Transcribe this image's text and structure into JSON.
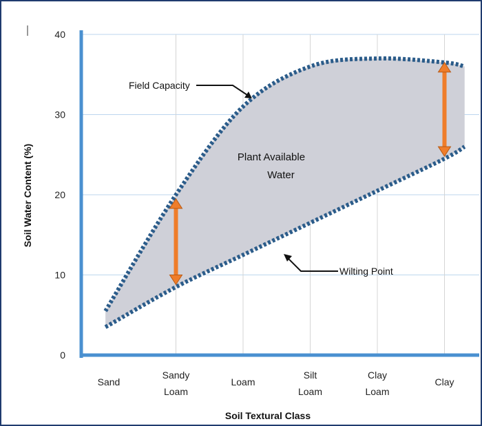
{
  "chart_data": {
    "type": "area",
    "ylabel": "Soil Water Content (%)",
    "xlabel": "Soil Textural Class",
    "ylim": [
      0,
      40
    ],
    "yticks": [
      "0",
      "10",
      "20",
      "30",
      "40"
    ],
    "grid": true,
    "categories": [
      [
        "Sand"
      ],
      [
        "Sandy",
        "Loam"
      ],
      [
        "Loam"
      ],
      [
        "Silt",
        "Loam"
      ],
      [
        "Clay",
        "Loam"
      ],
      [
        "Clay"
      ]
    ],
    "x": [
      0,
      1,
      2,
      3,
      4,
      5
    ],
    "series": [
      {
        "name": "Field Capacity",
        "x": [
          -0.05,
          1,
          2,
          3,
          4,
          5,
          5.3
        ],
        "values": [
          5.5,
          20,
          31,
          36,
          37,
          36.5,
          36
        ]
      },
      {
        "name": "Wilting Point",
        "x": [
          -0.05,
          1,
          2,
          3,
          4,
          5,
          5.3
        ],
        "values": [
          3.5,
          8.5,
          12.5,
          16.5,
          20.5,
          24.5,
          26
        ]
      }
    ],
    "annotations": [
      {
        "text_lines": [
          "Plant Available",
          "Water"
        ]
      },
      {
        "text": "Field Capacity"
      },
      {
        "text": "Wilting Point"
      }
    ],
    "range_arrows": [
      {
        "x": 1.0,
        "from": 8.8,
        "to": 19.5
      },
      {
        "x": 5.0,
        "from": 24.8,
        "to": 36.5
      }
    ],
    "colors": {
      "fill": "#cfd0d8",
      "curve": "#2b5c8a",
      "axis": "#4a90d0",
      "grid": "#bcd6ee",
      "arrow": "#ef7d2a",
      "frame": "#1f3b6e"
    }
  }
}
